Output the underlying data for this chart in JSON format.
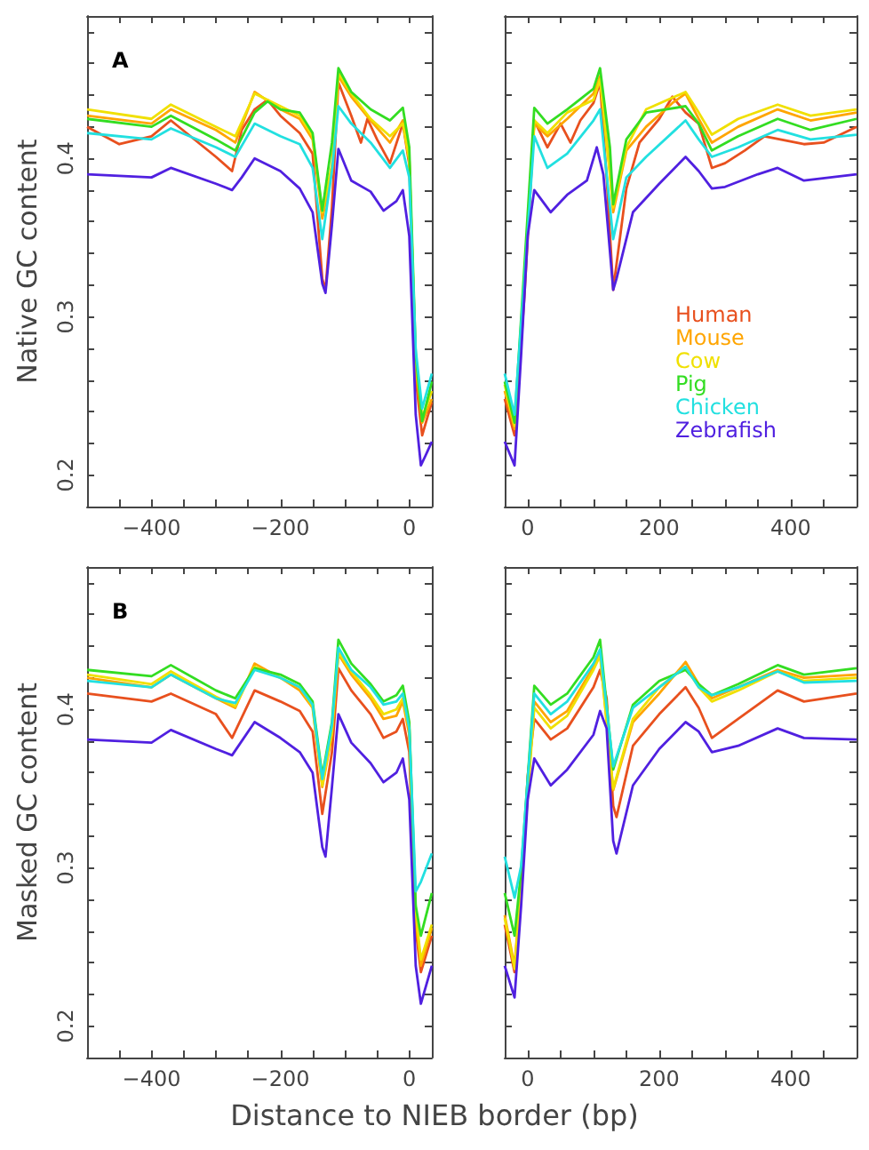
{
  "chart_data": [
    {
      "type": "line",
      "title": "A",
      "ylabel": "Native GC content",
      "xlim": [
        -500,
        35
      ],
      "ylim": [
        0.18,
        0.49
      ],
      "xticks": [
        {
          "value": -500,
          "label": null
        },
        {
          "value": -450,
          "label": null
        },
        {
          "value": -400,
          "label": "−400"
        },
        {
          "value": -350,
          "label": null
        },
        {
          "value": -300,
          "label": null
        },
        {
          "value": -250,
          "label": null
        },
        {
          "value": -200,
          "label": "−200"
        },
        {
          "value": -150,
          "label": null
        },
        {
          "value": -100,
          "label": null
        },
        {
          "value": -50,
          "label": null
        },
        0
      ],
      "yticks": [
        0.2,
        {
          "value": 0.22,
          "label": null
        },
        {
          "value": 0.24,
          "label": null
        },
        {
          "value": 0.26,
          "label": null
        },
        {
          "value": 0.28,
          "label": null
        },
        0.3,
        {
          "value": 0.32,
          "label": null
        },
        {
          "value": 0.34,
          "label": null
        },
        {
          "value": 0.36,
          "label": null
        },
        {
          "value": 0.38,
          "label": null
        },
        0.4,
        {
          "value": 0.42,
          "label": null
        },
        {
          "value": 0.44,
          "label": null
        },
        {
          "value": 0.46,
          "label": null
        },
        {
          "value": 0.48,
          "label": null
        }
      ],
      "series": [
        {
          "color": "#e8501e",
          "x": [
            -500,
            -450,
            -400,
            -370,
            -300,
            -275,
            -260,
            -240,
            -220,
            -200,
            -170,
            -150,
            -135,
            -130,
            -120,
            -110,
            -90,
            -75,
            -65,
            -50,
            -30,
            -10,
            0,
            10,
            20,
            35
          ],
          "values": [
            0.42,
            0.409,
            0.414,
            0.424,
            0.401,
            0.392,
            0.418,
            0.431,
            0.437,
            0.427,
            0.416,
            0.403,
            0.324,
            0.317,
            0.369,
            0.448,
            0.427,
            0.41,
            0.425,
            0.412,
            0.397,
            0.422,
            0.396,
            0.261,
            0.225,
            0.246
          ]
        },
        {
          "color": "#ffa500",
          "x": [
            -500,
            -400,
            -370,
            -300,
            -270,
            -240,
            -200,
            -170,
            -150,
            -135,
            -120,
            -110,
            -90,
            -60,
            -30,
            -10,
            0,
            10,
            20,
            35
          ],
          "values": [
            0.427,
            0.422,
            0.431,
            0.418,
            0.41,
            0.442,
            0.431,
            0.425,
            0.412,
            0.362,
            0.392,
            0.452,
            0.439,
            0.424,
            0.41,
            0.424,
            0.399,
            0.268,
            0.233,
            0.248
          ]
        },
        {
          "color": "#f0e000",
          "x": [
            -500,
            -400,
            -370,
            -300,
            -270,
            -240,
            -200,
            -170,
            -150,
            -135,
            -120,
            -110,
            -90,
            -60,
            -30,
            -10,
            0,
            10,
            20,
            35
          ],
          "values": [
            0.431,
            0.425,
            0.434,
            0.42,
            0.414,
            0.441,
            0.433,
            0.427,
            0.414,
            0.366,
            0.396,
            0.454,
            0.441,
            0.425,
            0.414,
            0.422,
            0.399,
            0.272,
            0.236,
            0.253
          ]
        },
        {
          "color": "#33dd22",
          "x": [
            -500,
            -400,
            -370,
            -300,
            -270,
            -240,
            -220,
            -200,
            -170,
            -150,
            -135,
            -120,
            -110,
            -90,
            -60,
            -30,
            -10,
            0,
            10,
            20,
            35
          ],
          "values": [
            0.425,
            0.42,
            0.427,
            0.412,
            0.405,
            0.429,
            0.436,
            0.431,
            0.429,
            0.416,
            0.367,
            0.41,
            0.457,
            0.442,
            0.431,
            0.424,
            0.432,
            0.407,
            0.276,
            0.234,
            0.259
          ]
        },
        {
          "color": "#22e0e0",
          "x": [
            -500,
            -400,
            -370,
            -300,
            -270,
            -240,
            -200,
            -170,
            -150,
            -135,
            -120,
            -110,
            -90,
            -60,
            -30,
            -10,
            0,
            10,
            20,
            35
          ],
          "values": [
            0.416,
            0.412,
            0.419,
            0.407,
            0.401,
            0.422,
            0.414,
            0.409,
            0.394,
            0.349,
            0.392,
            0.433,
            0.422,
            0.41,
            0.394,
            0.405,
            0.388,
            0.279,
            0.242,
            0.264
          ]
        },
        {
          "color": "#5020e0",
          "x": [
            -500,
            -400,
            -370,
            -300,
            -275,
            -260,
            -240,
            -200,
            -170,
            -150,
            -135,
            -130,
            -120,
            -110,
            -90,
            -60,
            -40,
            -20,
            -10,
            0,
            10,
            18,
            25,
            35
          ],
          "values": [
            0.39,
            0.388,
            0.394,
            0.384,
            0.38,
            0.388,
            0.4,
            0.392,
            0.381,
            0.366,
            0.321,
            0.315,
            0.358,
            0.406,
            0.386,
            0.379,
            0.367,
            0.373,
            0.38,
            0.351,
            0.238,
            0.206,
            0.212,
            0.221
          ]
        }
      ]
    },
    {
      "type": "line",
      "tick_labels": "x",
      "legend": "bottom",
      "xlim": [
        -35,
        500
      ],
      "ylim": [
        0.18,
        0.49
      ],
      "xticks": [
        0,
        {
          "value": 50,
          "label": null
        },
        {
          "value": 100,
          "label": null
        },
        {
          "value": 150,
          "label": null
        },
        200,
        {
          "value": 250,
          "label": null
        },
        {
          "value": 300,
          "label": null
        },
        {
          "value": 350,
          "label": null
        },
        400,
        {
          "value": 450,
          "label": null
        },
        {
          "value": 500,
          "label": null
        }
      ],
      "yticks": [
        0.2,
        {
          "value": 0.22,
          "label": null
        },
        {
          "value": 0.24,
          "label": null
        },
        {
          "value": 0.26,
          "label": null
        },
        {
          "value": 0.28,
          "label": null
        },
        0.3,
        {
          "value": 0.32,
          "label": null
        },
        {
          "value": 0.34,
          "label": null
        },
        {
          "value": 0.36,
          "label": null
        },
        {
          "value": 0.38,
          "label": null
        },
        0.4,
        {
          "value": 0.42,
          "label": null
        },
        {
          "value": 0.44,
          "label": null
        },
        {
          "value": 0.46,
          "label": null
        },
        {
          "value": 0.48,
          "label": null
        }
      ],
      "series": [
        {
          "name": "Human",
          "color": "#e8501e",
          "x": [
            -35,
            -20,
            -5,
            10,
            30,
            50,
            65,
            80,
            100,
            110,
            120,
            130,
            150,
            170,
            200,
            220,
            240,
            260,
            280,
            300,
            330,
            360,
            420,
            450,
            500
          ],
          "values": [
            0.248,
            0.225,
            0.313,
            0.424,
            0.407,
            0.422,
            0.41,
            0.424,
            0.435,
            0.448,
            0.388,
            0.317,
            0.381,
            0.41,
            0.425,
            0.439,
            0.429,
            0.422,
            0.394,
            0.397,
            0.405,
            0.414,
            0.409,
            0.41,
            0.42
          ]
        },
        {
          "name": "Mouse",
          "color": "#ffa500",
          "x": [
            -35,
            -20,
            -5,
            10,
            30,
            60,
            100,
            110,
            125,
            130,
            150,
            180,
            220,
            240,
            260,
            280,
            320,
            380,
            430,
            500
          ],
          "values": [
            0.253,
            0.229,
            0.321,
            0.422,
            0.414,
            0.425,
            0.441,
            0.452,
            0.392,
            0.366,
            0.405,
            0.42,
            0.435,
            0.441,
            0.425,
            0.41,
            0.42,
            0.431,
            0.424,
            0.429
          ]
        },
        {
          "name": "Cow",
          "color": "#f0e000",
          "x": [
            -35,
            -20,
            -5,
            10,
            30,
            60,
            100,
            110,
            130,
            150,
            180,
            240,
            260,
            280,
            320,
            380,
            430,
            500
          ],
          "values": [
            0.257,
            0.231,
            0.324,
            0.424,
            0.416,
            0.429,
            0.437,
            0.45,
            0.369,
            0.407,
            0.431,
            0.442,
            0.429,
            0.415,
            0.425,
            0.434,
            0.427,
            0.431
          ]
        },
        {
          "name": "Pig",
          "color": "#33dd22",
          "x": [
            -35,
            -20,
            -5,
            10,
            30,
            60,
            100,
            110,
            125,
            130,
            150,
            180,
            240,
            260,
            280,
            320,
            380,
            430,
            500
          ],
          "values": [
            0.259,
            0.233,
            0.332,
            0.432,
            0.422,
            0.431,
            0.444,
            0.457,
            0.407,
            0.371,
            0.412,
            0.429,
            0.433,
            0.422,
            0.405,
            0.414,
            0.425,
            0.418,
            0.425
          ]
        },
        {
          "name": "Chicken",
          "color": "#22e0e0",
          "x": [
            -35,
            -20,
            -5,
            10,
            30,
            60,
            100,
            110,
            130,
            150,
            180,
            240,
            260,
            280,
            320,
            380,
            430,
            500
          ],
          "values": [
            0.264,
            0.238,
            0.324,
            0.414,
            0.394,
            0.403,
            0.424,
            0.431,
            0.349,
            0.388,
            0.401,
            0.424,
            0.412,
            0.401,
            0.407,
            0.418,
            0.412,
            0.415
          ]
        },
        {
          "name": "Zebrafish",
          "color": "#5020e0",
          "x": [
            -35,
            -25,
            -20,
            -10,
            0,
            10,
            35,
            60,
            90,
            105,
            115,
            130,
            135,
            160,
            200,
            240,
            260,
            280,
            300,
            350,
            380,
            420,
            500
          ],
          "values": [
            0.221,
            0.211,
            0.206,
            0.276,
            0.351,
            0.38,
            0.366,
            0.377,
            0.386,
            0.407,
            0.39,
            0.317,
            0.324,
            0.366,
            0.384,
            0.401,
            0.392,
            0.381,
            0.382,
            0.39,
            0.394,
            0.386,
            0.39
          ]
        }
      ]
    },
    {
      "type": "line",
      "title": "B",
      "ylabel": "Masked GC content",
      "xlabel": "Distance to NIEB border (bp)",
      "xlim": [
        -500,
        35
      ],
      "ylim": [
        0.18,
        0.49
      ],
      "xticks": [
        {
          "value": -500,
          "label": null
        },
        {
          "value": -450,
          "label": null
        },
        {
          "value": -400,
          "label": "−400"
        },
        {
          "value": -350,
          "label": null
        },
        {
          "value": -300,
          "label": null
        },
        {
          "value": -250,
          "label": null
        },
        {
          "value": -200,
          "label": "−200"
        },
        {
          "value": -150,
          "label": null
        },
        {
          "value": -100,
          "label": null
        },
        {
          "value": -50,
          "label": null
        },
        0
      ],
      "yticks": [
        0.2,
        {
          "value": 0.22,
          "label": null
        },
        {
          "value": 0.24,
          "label": null
        },
        {
          "value": 0.26,
          "label": null
        },
        {
          "value": 0.28,
          "label": null
        },
        0.3,
        {
          "value": 0.32,
          "label": null
        },
        {
          "value": 0.34,
          "label": null
        },
        {
          "value": 0.36,
          "label": null
        },
        {
          "value": 0.38,
          "label": null
        },
        0.4,
        {
          "value": 0.42,
          "label": null
        },
        {
          "value": 0.44,
          "label": null
        },
        {
          "value": 0.46,
          "label": null
        },
        {
          "value": 0.48,
          "label": null
        }
      ],
      "series": [
        {
          "color": "#e8501e",
          "x": [
            -500,
            -400,
            -370,
            -300,
            -275,
            -240,
            -200,
            -170,
            -150,
            -135,
            -120,
            -110,
            -90,
            -60,
            -40,
            -20,
            -10,
            0,
            10,
            18,
            35
          ],
          "values": [
            0.41,
            0.405,
            0.41,
            0.397,
            0.382,
            0.412,
            0.405,
            0.399,
            0.386,
            0.334,
            0.373,
            0.426,
            0.412,
            0.397,
            0.382,
            0.386,
            0.394,
            0.373,
            0.261,
            0.234,
            0.257
          ]
        },
        {
          "color": "#ffa500",
          "x": [
            -500,
            -400,
            -370,
            -300,
            -270,
            -240,
            -200,
            -170,
            -150,
            -135,
            -120,
            -110,
            -90,
            -60,
            -40,
            -20,
            -10,
            0,
            10,
            18,
            35
          ],
          "values": [
            0.42,
            0.414,
            0.422,
            0.407,
            0.401,
            0.429,
            0.42,
            0.412,
            0.401,
            0.351,
            0.384,
            0.435,
            0.422,
            0.407,
            0.394,
            0.396,
            0.405,
            0.384,
            0.268,
            0.238,
            0.262
          ]
        },
        {
          "color": "#f0e000",
          "x": [
            -500,
            -400,
            -370,
            -300,
            -270,
            -240,
            -200,
            -170,
            -150,
            -135,
            -120,
            -110,
            -90,
            -60,
            -40,
            -20,
            -10,
            0,
            10,
            18,
            35
          ],
          "values": [
            0.422,
            0.416,
            0.424,
            0.408,
            0.402,
            0.427,
            0.42,
            0.414,
            0.402,
            0.352,
            0.386,
            0.436,
            0.424,
            0.409,
            0.397,
            0.4,
            0.407,
            0.388,
            0.272,
            0.242,
            0.264
          ]
        },
        {
          "color": "#33dd22",
          "x": [
            -500,
            -400,
            -370,
            -300,
            -270,
            -240,
            -200,
            -170,
            -150,
            -135,
            -120,
            -110,
            -90,
            -60,
            -40,
            -20,
            -10,
            0,
            10,
            18,
            35
          ],
          "values": [
            0.425,
            0.421,
            0.428,
            0.412,
            0.407,
            0.426,
            0.422,
            0.416,
            0.405,
            0.358,
            0.392,
            0.444,
            0.429,
            0.416,
            0.405,
            0.409,
            0.415,
            0.392,
            0.276,
            0.257,
            0.284
          ]
        },
        {
          "color": "#22e0e0",
          "x": [
            -500,
            -400,
            -370,
            -300,
            -270,
            -240,
            -200,
            -170,
            -150,
            -135,
            -120,
            -110,
            -90,
            -60,
            -40,
            -20,
            -10,
            0,
            10,
            18,
            35
          ],
          "values": [
            0.418,
            0.414,
            0.422,
            0.407,
            0.404,
            0.425,
            0.42,
            0.414,
            0.403,
            0.356,
            0.39,
            0.439,
            0.425,
            0.414,
            0.403,
            0.405,
            0.41,
            0.388,
            0.285,
            0.291,
            0.309
          ]
        },
        {
          "color": "#5020e0",
          "x": [
            -500,
            -400,
            -370,
            -300,
            -275,
            -240,
            -200,
            -170,
            -150,
            -135,
            -130,
            -120,
            -110,
            -90,
            -60,
            -40,
            -20,
            -10,
            0,
            10,
            18,
            35
          ],
          "values": [
            0.381,
            0.379,
            0.387,
            0.375,
            0.371,
            0.392,
            0.382,
            0.373,
            0.36,
            0.313,
            0.307,
            0.351,
            0.397,
            0.379,
            0.366,
            0.354,
            0.36,
            0.369,
            0.343,
            0.238,
            0.214,
            0.238
          ]
        }
      ]
    },
    {
      "type": "line",
      "tick_labels": "x",
      "xlim": [
        -35,
        500
      ],
      "ylim": [
        0.18,
        0.49
      ],
      "xticks": [
        0,
        {
          "value": 50,
          "label": null
        },
        {
          "value": 100,
          "label": null
        },
        {
          "value": 150,
          "label": null
        },
        200,
        {
          "value": 250,
          "label": null
        },
        {
          "value": 300,
          "label": null
        },
        {
          "value": 350,
          "label": null
        },
        400,
        {
          "value": 450,
          "label": null
        },
        {
          "value": 500,
          "label": null
        }
      ],
      "yticks": [
        0.2,
        {
          "value": 0.22,
          "label": null
        },
        {
          "value": 0.24,
          "label": null
        },
        {
          "value": 0.26,
          "label": null
        },
        {
          "value": 0.28,
          "label": null
        },
        0.3,
        {
          "value": 0.32,
          "label": null
        },
        {
          "value": 0.34,
          "label": null
        },
        {
          "value": 0.36,
          "label": null
        },
        {
          "value": 0.38,
          "label": null
        },
        0.4,
        {
          "value": 0.42,
          "label": null
        },
        {
          "value": 0.44,
          "label": null
        },
        {
          "value": 0.46,
          "label": null
        },
        {
          "value": 0.48,
          "label": null
        }
      ],
      "series": [
        {
          "color": "#e8501e",
          "x": [
            -35,
            -20,
            -10,
            0,
            10,
            35,
            60,
            100,
            110,
            120,
            130,
            135,
            160,
            200,
            240,
            260,
            280,
            320,
            380,
            420,
            500
          ],
          "values": [
            0.264,
            0.234,
            0.283,
            0.358,
            0.394,
            0.381,
            0.388,
            0.414,
            0.425,
            0.407,
            0.339,
            0.332,
            0.377,
            0.397,
            0.414,
            0.401,
            0.382,
            0.394,
            0.412,
            0.405,
            0.41
          ]
        },
        {
          "color": "#ffa500",
          "x": [
            -35,
            -20,
            -10,
            10,
            35,
            60,
            100,
            110,
            130,
            160,
            200,
            240,
            260,
            280,
            320,
            380,
            420,
            500
          ],
          "values": [
            0.27,
            0.238,
            0.29,
            0.405,
            0.392,
            0.399,
            0.427,
            0.436,
            0.349,
            0.392,
            0.41,
            0.43,
            0.416,
            0.407,
            0.414,
            0.425,
            0.42,
            0.422
          ]
        },
        {
          "color": "#f0e000",
          "x": [
            -35,
            -20,
            -10,
            10,
            35,
            60,
            100,
            110,
            130,
            160,
            200,
            240,
            260,
            280,
            320,
            380,
            420,
            500
          ],
          "values": [
            0.268,
            0.236,
            0.289,
            0.401,
            0.388,
            0.396,
            0.425,
            0.434,
            0.35,
            0.394,
            0.414,
            0.427,
            0.414,
            0.405,
            0.412,
            0.424,
            0.418,
            0.42
          ]
        },
        {
          "color": "#33dd22",
          "x": [
            -35,
            -20,
            -10,
            10,
            35,
            60,
            100,
            110,
            130,
            160,
            200,
            240,
            260,
            280,
            320,
            380,
            420,
            500
          ],
          "values": [
            0.284,
            0.257,
            0.298,
            0.415,
            0.403,
            0.41,
            0.433,
            0.444,
            0.362,
            0.403,
            0.418,
            0.425,
            0.416,
            0.409,
            0.416,
            0.428,
            0.422,
            0.426
          ]
        },
        {
          "color": "#22e0e0",
          "x": [
            -35,
            -20,
            -10,
            10,
            35,
            60,
            100,
            110,
            130,
            160,
            200,
            240,
            260,
            280,
            320,
            380,
            420,
            500
          ],
          "values": [
            0.307,
            0.281,
            0.301,
            0.41,
            0.397,
            0.405,
            0.429,
            0.438,
            0.364,
            0.401,
            0.414,
            0.427,
            0.414,
            0.409,
            0.414,
            0.424,
            0.417,
            0.418
          ]
        },
        {
          "color": "#5020e0",
          "x": [
            -35,
            -20,
            -10,
            0,
            10,
            35,
            60,
            100,
            110,
            120,
            130,
            135,
            160,
            200,
            240,
            260,
            280,
            320,
            380,
            420,
            500
          ],
          "values": [
            0.238,
            0.218,
            0.276,
            0.343,
            0.369,
            0.352,
            0.362,
            0.384,
            0.399,
            0.388,
            0.317,
            0.309,
            0.352,
            0.375,
            0.392,
            0.386,
            0.373,
            0.377,
            0.388,
            0.382,
            0.381
          ]
        }
      ]
    }
  ]
}
